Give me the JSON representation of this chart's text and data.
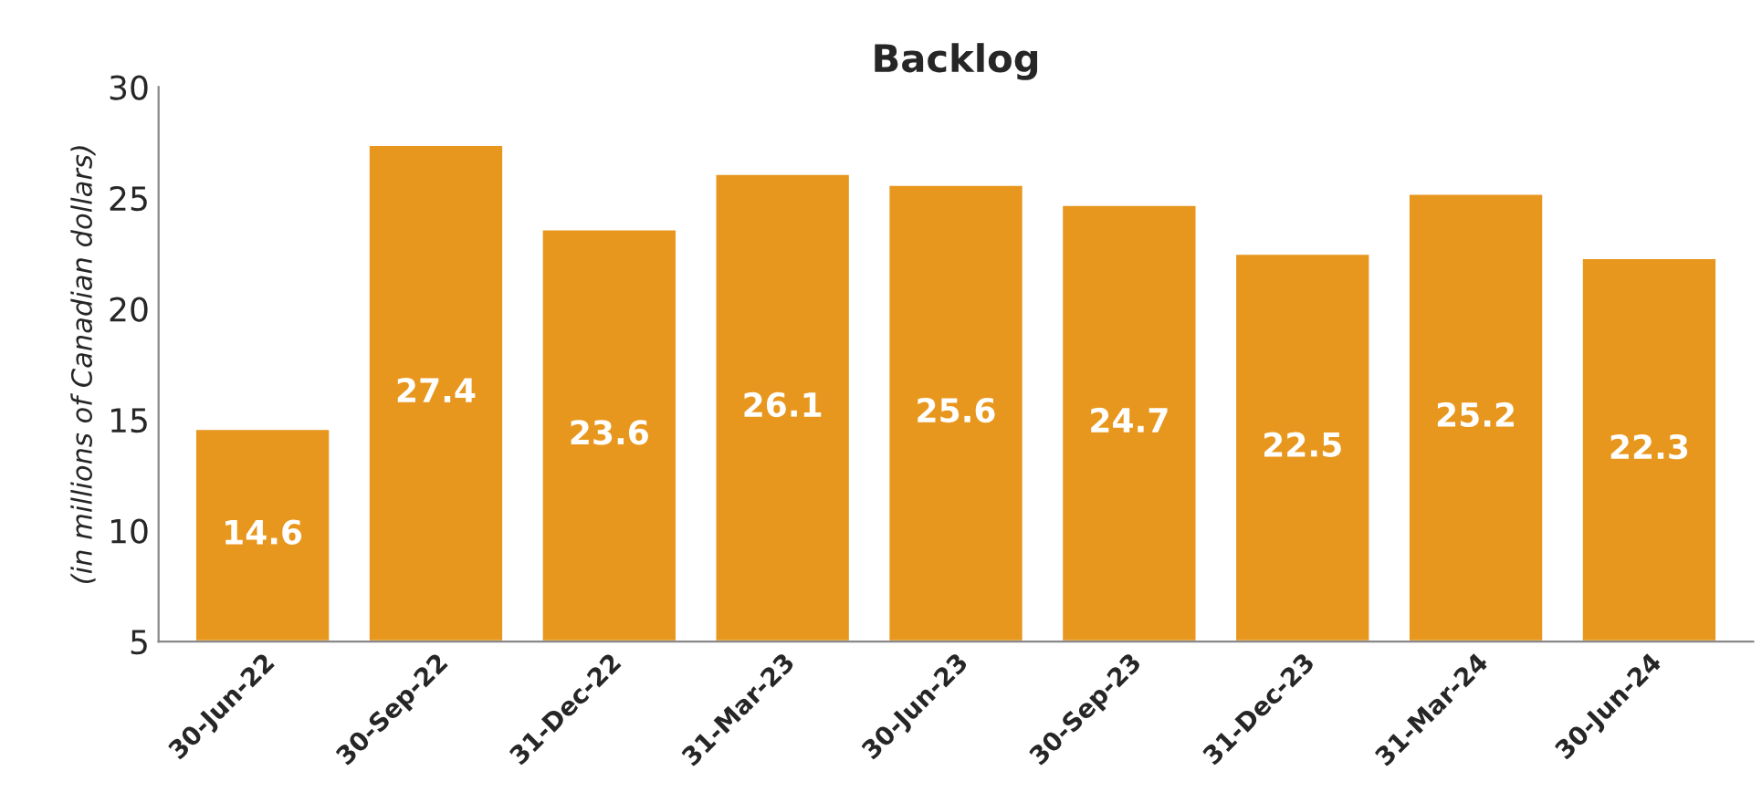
{
  "chart_data": {
    "type": "bar",
    "title": "Backlog",
    "ylabel": "(in millions of Canadian dollars)",
    "categories": [
      "30-Jun-22",
      "30-Sep-22",
      "31-Dec-22",
      "31-Mar-23",
      "30-Jun-23",
      "30-Sep-23",
      "31-Dec-23",
      "31-Mar-24",
      "30-Jun-24"
    ],
    "values": [
      14.6,
      27.4,
      23.6,
      26.1,
      25.6,
      24.7,
      22.5,
      25.2,
      22.3
    ],
    "color": "#e8971e",
    "ylim": [
      5,
      30
    ],
    "yticks": [
      5,
      10,
      15,
      20,
      25,
      30
    ],
    "grid": false,
    "legend": false,
    "data_labels": true
  }
}
